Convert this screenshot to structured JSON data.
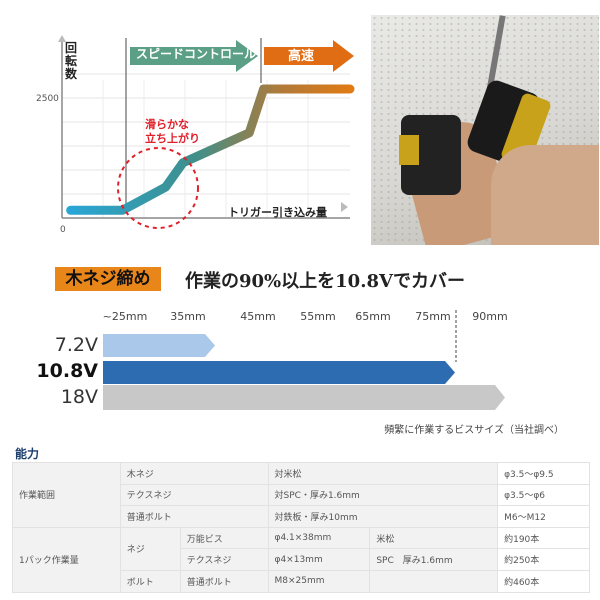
{
  "speed_chart": {
    "ylabel": "回転数",
    "ytick_top": "2500",
    "origin_label": "0",
    "xlabel": "トリガー引き込み量",
    "phase_labels": [
      "スピードコントロール",
      "高速"
    ],
    "annotation": "滑らかな\n立ち上がり",
    "colors": {
      "phase1": "#5a9f86",
      "phase2": "#e06d14",
      "annotation": "#e0202a",
      "line_start": "#2aa6d6",
      "line_end": "#e07a14"
    }
  },
  "chart_data": [
    {
      "type": "line",
      "ylabel": "回転数",
      "xlabel": "トリガー引き込み量",
      "yticks": [
        0,
        2500
      ],
      "ylim": [
        0,
        3000
      ],
      "grid": true,
      "series": [
        {
          "x": [
            3,
            21,
            36,
            42,
            65,
            70,
            100
          ],
          "y": [
            150,
            150,
            600,
            1070,
            1650,
            2500,
            2500
          ]
        }
      ]
    },
    {
      "type": "bar",
      "orientation": "horizontal",
      "categories": [
        "7.2V",
        "10.8V",
        "18V"
      ],
      "values_mm": [
        35,
        75,
        90
      ],
      "xticks": [
        "~25mm",
        "35mm",
        "45mm",
        "55mm",
        "65mm",
        "75mm",
        "90mm"
      ],
      "colors": [
        "#a9c8ea",
        "#2e6cb2",
        "#c8c8c8"
      ],
      "note": "頻繁に作業するビスサイズ（当社調べ）"
    }
  ],
  "banner": {
    "tag": "木ネジ締め",
    "headline": "作業の90%以上を10.8Vでカバー"
  },
  "capacity": {
    "title": "能力",
    "work_range": {
      "label": "作業範囲",
      "rows": [
        {
          "type": "木ネジ",
          "cond": "対米松",
          "value": "φ3.5〜φ9.5"
        },
        {
          "type": "テクスネジ",
          "cond": "対SPC・厚み1.6mm",
          "value": "φ3.5〜φ6"
        },
        {
          "type": "普通ボルト",
          "cond": "対鉄板・厚み10mm",
          "value": "M6〜M12"
        }
      ]
    },
    "per_pack": {
      "label": "1パック作業量",
      "screw_group": "ネジ",
      "bolt_group": "ボルト",
      "rows": [
        {
          "type": "万能ビス",
          "size": "φ4.1×38mm",
          "material": "米松",
          "value": "約190本"
        },
        {
          "type": "テクスネジ",
          "size": "φ4×13mm",
          "material": "SPC　厚み1.6mm",
          "value": "約250本"
        },
        {
          "type": "普通ボルト",
          "size": "M8×25mm",
          "material": "",
          "value": "約460本"
        }
      ]
    }
  }
}
